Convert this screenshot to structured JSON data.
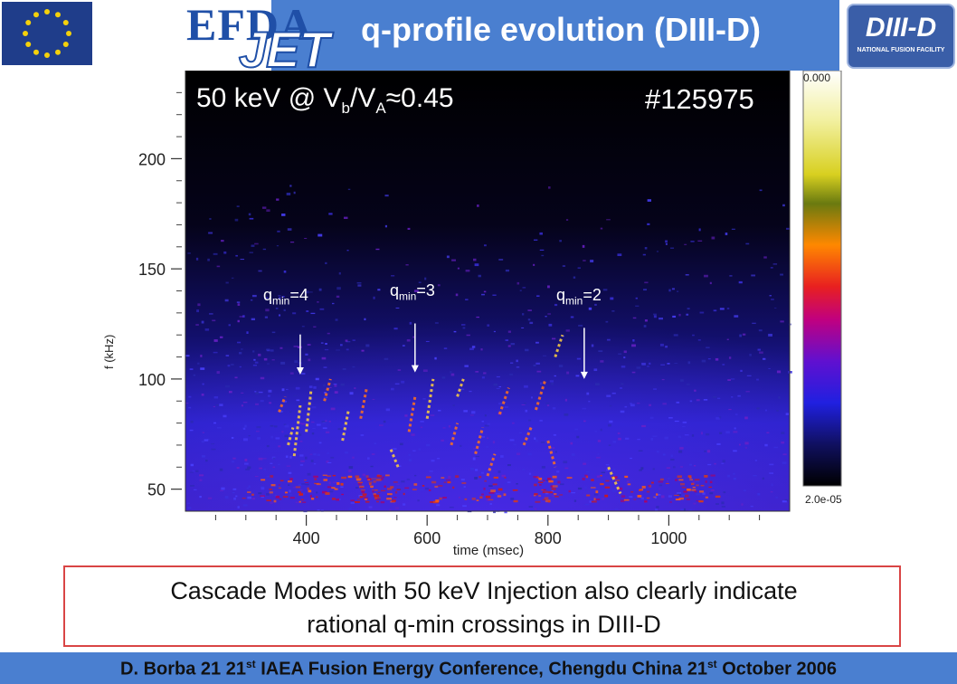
{
  "header": {
    "title": "q-profile evolution (DIII-D)",
    "efda_logo_text": "EFDA",
    "jet_logo_text": "JET",
    "diiid_logo_main": "DIII-D",
    "diiid_logo_sub": "NATIONAL FUSION FACILITY",
    "band_color": "#4a7fd0"
  },
  "plot": {
    "beam_label_prefix": "50 keV @ V",
    "beam_label_sub1": "b",
    "beam_label_mid": "/V",
    "beam_label_sub2": "A",
    "beam_label_suffix": "≈0.45",
    "shot_label": "#125975",
    "annotations": [
      {
        "q": "q",
        "sub": "min",
        "value": "=4"
      },
      {
        "q": "q",
        "sub": "min",
        "value": "=3"
      },
      {
        "q": "q",
        "sub": "min",
        "value": "=2"
      }
    ],
    "colorbar_max": "0.000",
    "colorbar_min": "2.0e-05"
  },
  "chart_data": {
    "type": "heatmap",
    "xlabel": "time (msec)",
    "ylabel": "f (kHz)",
    "x_ticks": [
      400,
      600,
      800,
      1000
    ],
    "y_ticks": [
      50,
      100,
      150,
      200
    ],
    "xlim": [
      200,
      1200
    ],
    "ylim": [
      40,
      240
    ],
    "annotation_times": [
      390,
      580,
      860
    ]
  },
  "caption": {
    "line1": "Cascade Modes with 50 keV Injection also clearly indicate",
    "line2": "rational q-min crossings in DIII-D"
  },
  "footer": {
    "part1": "D. Borba  21 21",
    "sup1": "st",
    "part2": " IAEA Fusion Energy Conference, Chengdu China 21",
    "sup2": "st",
    "part3": " October 2006"
  }
}
